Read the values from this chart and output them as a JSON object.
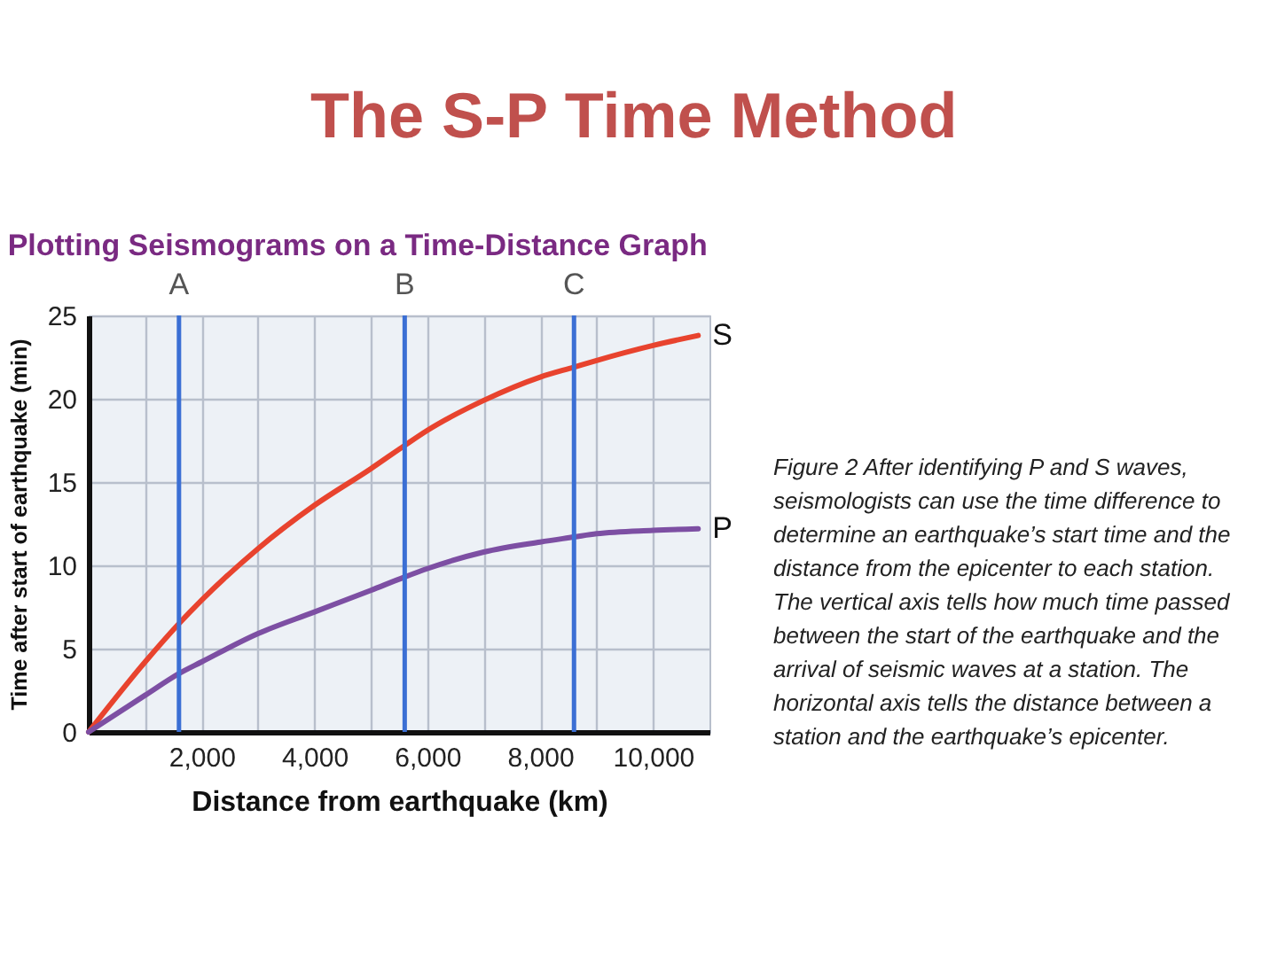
{
  "chart_data": {
    "type": "line",
    "title": "The S-P Time Method",
    "subtitle": "Plotting Seismograms on a Time-Distance Graph",
    "xlabel": "Distance from earthquake (km)",
    "ylabel": "Time after start of earthquake (min)",
    "x": [
      0,
      1000,
      1600,
      2000,
      3000,
      4000,
      5000,
      5600,
      6000,
      7000,
      8000,
      8600,
      9000,
      10000,
      10800
    ],
    "series": [
      {
        "name": "S",
        "color": "#e8432e",
        "values": [
          0,
          4.2,
          6.5,
          7.9,
          11.0,
          13.6,
          15.8,
          17.2,
          18.1,
          19.9,
          21.3,
          21.9,
          22.3,
          23.2,
          23.8
        ]
      },
      {
        "name": "P",
        "color": "#7d4fa3",
        "values": [
          0,
          2.2,
          3.5,
          4.2,
          5.9,
          7.2,
          8.5,
          9.3,
          9.8,
          10.8,
          11.4,
          11.7,
          11.9,
          12.1,
          12.2
        ]
      }
    ],
    "xlim": [
      0,
      11000
    ],
    "xticks": [
      {
        "value": 1000,
        "label": null
      },
      {
        "value": 2000,
        "label": "2,000"
      },
      {
        "value": 3000,
        "label": null
      },
      {
        "value": 4000,
        "label": "4,000"
      },
      {
        "value": 5000,
        "label": null
      },
      {
        "value": 6000,
        "label": "6,000"
      },
      {
        "value": 7000,
        "label": null
      },
      {
        "value": 8000,
        "label": "8,000"
      },
      {
        "value": 9000,
        "label": null
      },
      {
        "value": 10000,
        "label": "10,000"
      }
    ],
    "ylim": [
      0,
      25
    ],
    "yticks": [
      0,
      5,
      10,
      15,
      20,
      25
    ],
    "grid": true,
    "line_style": "solid",
    "ref_lines": [
      {
        "axis": "x",
        "value": 1600,
        "label": "A",
        "color": "#3b6fd4"
      },
      {
        "axis": "x",
        "value": 5600,
        "label": "B",
        "color": "#3b6fd4"
      },
      {
        "axis": "x",
        "value": 8600,
        "label": "C",
        "color": "#3b6fd4"
      }
    ],
    "annotations": [
      "Figure 2 After identifying P and S waves, seismologists can use the time difference to determine an earthquake’s start time and the distance from the epicenter to each station. The vertical axis tells how much time passed between the start of the earthquake and the arrival of seismic waves at a station. The horizontal axis tells the distance between a station and the earthquake’s epicenter."
    ]
  }
}
